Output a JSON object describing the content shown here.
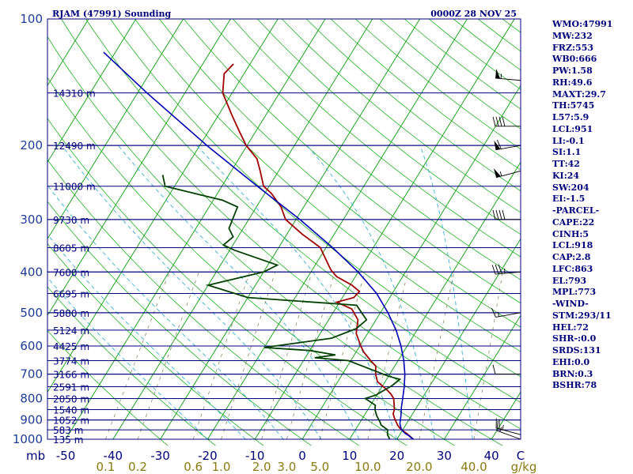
{
  "header": {
    "station": "RJAM (47991) Sounding",
    "time": "0000Z 28 NOV 25"
  },
  "stats": [
    "WMO:47991",
    "MW:232",
    "FRZ:553",
    "WB0:666",
    "PW:1.58",
    "RH:49.6",
    "MAXT:29.7",
    "TH:5745",
    "L57:5.9",
    "LCL:951",
    "LI:-0.1",
    "SI:1.1",
    "TT:42",
    "KI:24",
    "SW:204",
    "EI:-1.5",
    "-PARCEL-",
    "CAPE:22",
    "CINH:5",
    "LCL:918",
    "CAP:2.8",
    "LFC:863",
    "EL:793",
    "MPL:773",
    "-WIND-",
    "STM:293/11",
    "HEL:72",
    "SHR-:0.0",
    "SRDS:131",
    "EHI:0.0",
    "BRN:0.3",
    "BSHR:78"
  ],
  "colors": {
    "isobar": "#000080",
    "isotherm": "#0b9a0b",
    "dry_adiabat": "#22b022",
    "moist_adiabat": "#3ab0d8",
    "mixing_ratio": "#8a8a60",
    "temperature": "#a00000",
    "dewpoint": "#004000",
    "parcel": "#0000b4",
    "label": "#00007a",
    "mixing_label": "#8a7a10"
  },
  "chart_data": {
    "type": "skew-t log-p sounding",
    "pressure_axis": {
      "label": "mb",
      "range": [
        1000,
        100
      ],
      "unit": "hPa"
    },
    "temperature_axis": {
      "label": "C",
      "range": [
        -50,
        50
      ],
      "ticks": [
        -50,
        -40,
        -30,
        -20,
        -10,
        0,
        10,
        20,
        30,
        40
      ]
    },
    "pressure_tick_labels": [
      "100",
      "200",
      "300",
      "400",
      "500",
      "600",
      "700",
      "800",
      "900",
      "1000"
    ],
    "pressure_ticks": [
      100,
      200,
      300,
      400,
      500,
      600,
      700,
      800,
      900,
      1000
    ],
    "height_labels": [
      {
        "p": 150,
        "label": "14310 m"
      },
      {
        "p": 200,
        "label": "12490 m"
      },
      {
        "p": 250,
        "label": "11000 m"
      },
      {
        "p": 300,
        "label": "9730 m"
      },
      {
        "p": 350,
        "label": "8605 m"
      },
      {
        "p": 400,
        "label": "7600 m"
      },
      {
        "p": 450,
        "label": "6695 m"
      },
      {
        "p": 500,
        "label": "5880 m"
      },
      {
        "p": 550,
        "label": "5124 m"
      },
      {
        "p": 600,
        "label": "4425 m"
      },
      {
        "p": 650,
        "label": "3774 m"
      },
      {
        "p": 700,
        "label": "3166 m"
      },
      {
        "p": 750,
        "label": "2591 m"
      },
      {
        "p": 800,
        "label": "2050 m"
      },
      {
        "p": 850,
        "label": "1540 m"
      },
      {
        "p": 900,
        "label": "1052 m"
      },
      {
        "p": 950,
        "label": "583 m"
      },
      {
        "p": 1000,
        "label": "135 m"
      }
    ],
    "mixing_ratio_axis": {
      "unit": "g/kg",
      "values": [
        0.1,
        0.2,
        0.6,
        1.0,
        2.0,
        3.0,
        5.0,
        10.0,
        20.0,
        40.0
      ],
      "tick_labels": [
        "0.1",
        "0.2",
        "0.6",
        "1.0",
        "2.0",
        "3.0",
        "5.0",
        "10.0",
        "20.0",
        "40.0"
      ]
    },
    "series": [
      {
        "name": "temperature",
        "points": [
          [
            1000,
            23.5
          ],
          [
            990,
            22.8
          ],
          [
            980,
            22.1
          ],
          [
            970,
            21.4
          ],
          [
            960,
            20.6
          ],
          [
            950,
            19.8
          ],
          [
            940,
            19.1
          ],
          [
            925,
            18.3
          ],
          [
            910,
            17.6
          ],
          [
            890,
            16.7
          ],
          [
            870,
            15.9
          ],
          [
            850,
            15.6
          ],
          [
            830,
            15.0
          ],
          [
            800,
            14.0
          ],
          [
            780,
            12.8
          ],
          [
            760,
            11.2
          ],
          [
            730,
            8.4
          ],
          [
            700,
            7.0
          ],
          [
            670,
            6.0
          ],
          [
            650,
            4.2
          ],
          [
            620,
            1.6
          ],
          [
            600,
            0.2
          ],
          [
            560,
            -2.4
          ],
          [
            520,
            -3.8
          ],
          [
            490,
            -6.5
          ],
          [
            472,
            -10.6
          ],
          [
            460,
            -7.6
          ],
          [
            445,
            -7.2
          ],
          [
            430,
            -9.6
          ],
          [
            410,
            -14.0
          ],
          [
            395,
            -16.1
          ],
          [
            350,
            -21.2
          ],
          [
            325,
            -26.8
          ],
          [
            300,
            -32.2
          ],
          [
            280,
            -34.8
          ],
          [
            260,
            -38.6
          ],
          [
            250,
            -41.2
          ],
          [
            230,
            -43.9
          ],
          [
            215,
            -46.2
          ],
          [
            200,
            -50.2
          ],
          [
            185,
            -53.5
          ],
          [
            170,
            -57.0
          ],
          [
            150,
            -62.0
          ],
          [
            135,
            -64.2
          ],
          [
            128,
            -63.5
          ]
        ]
      },
      {
        "name": "dewpoint",
        "points": [
          [
            1000,
            18.5
          ],
          [
            975,
            17.4
          ],
          [
            950,
            16.8
          ],
          [
            925,
            14.8
          ],
          [
            910,
            14.2
          ],
          [
            880,
            12.7
          ],
          [
            850,
            11.5
          ],
          [
            830,
            11.0
          ],
          [
            800,
            8.0
          ],
          [
            785,
            9.8
          ],
          [
            770,
            10.6
          ],
          [
            745,
            12.0
          ],
          [
            720,
            12.8
          ],
          [
            708,
            10.0
          ],
          [
            650,
            -0.5
          ],
          [
            640,
            -8.0
          ],
          [
            630,
            -4.0
          ],
          [
            615,
            -10.0
          ],
          [
            605,
            -20.0
          ],
          [
            575,
            -7.0
          ],
          [
            545,
            -3.0
          ],
          [
            520,
            -2.0
          ],
          [
            480,
            -6.0
          ],
          [
            460,
            -30.0
          ],
          [
            430,
            -40.0
          ],
          [
            400,
            -30.0
          ],
          [
            385,
            -28.0
          ],
          [
            355,
            -39.0
          ],
          [
            345,
            -42.0
          ],
          [
            330,
            -41.0
          ],
          [
            315,
            -43.0
          ],
          [
            280,
            -44.0
          ],
          [
            270,
            -48.0
          ],
          [
            250,
            -62.0
          ],
          [
            235,
            -64.0
          ]
        ]
      },
      {
        "name": "parcel",
        "points": [
          [
            1000,
            23.5
          ],
          [
            990,
            22.7
          ],
          [
            980,
            22.0
          ],
          [
            970,
            21.1
          ],
          [
            960,
            20.4
          ],
          [
            950,
            19.8
          ],
          [
            935,
            19.2
          ],
          [
            918,
            18.6
          ],
          [
            880,
            17.8
          ],
          [
            840,
            16.8
          ],
          [
            800,
            15.9
          ],
          [
            750,
            14.7
          ],
          [
            700,
            13.2
          ],
          [
            650,
            11.2
          ],
          [
            600,
            8.7
          ],
          [
            550,
            5.6
          ],
          [
            500,
            1.6
          ],
          [
            450,
            -3.3
          ],
          [
            400,
            -10.0
          ],
          [
            350,
            -18.6
          ],
          [
            300,
            -29.2
          ],
          [
            250,
            -42.5
          ],
          [
            200,
            -58.5
          ],
          [
            150,
            -78.0
          ],
          [
            120,
            -92.5
          ]
        ]
      }
    ],
    "wind_barbs": [
      {
        "p": 1000,
        "dir": 290,
        "spd": 15
      },
      {
        "p": 975,
        "dir": 285,
        "spd": 25
      },
      {
        "p": 700,
        "dir": 270,
        "spd": 10
      },
      {
        "p": 500,
        "dir": 260,
        "spd": 15
      },
      {
        "p": 400,
        "dir": 265,
        "spd": 35
      },
      {
        "p": 300,
        "dir": 270,
        "spd": 40
      },
      {
        "p": 230,
        "dir": 255,
        "spd": 55
      },
      {
        "p": 200,
        "dir": 260,
        "spd": 60
      },
      {
        "p": 180,
        "dir": 270,
        "spd": 40
      },
      {
        "p": 140,
        "dir": 275,
        "spd": 55
      }
    ]
  }
}
